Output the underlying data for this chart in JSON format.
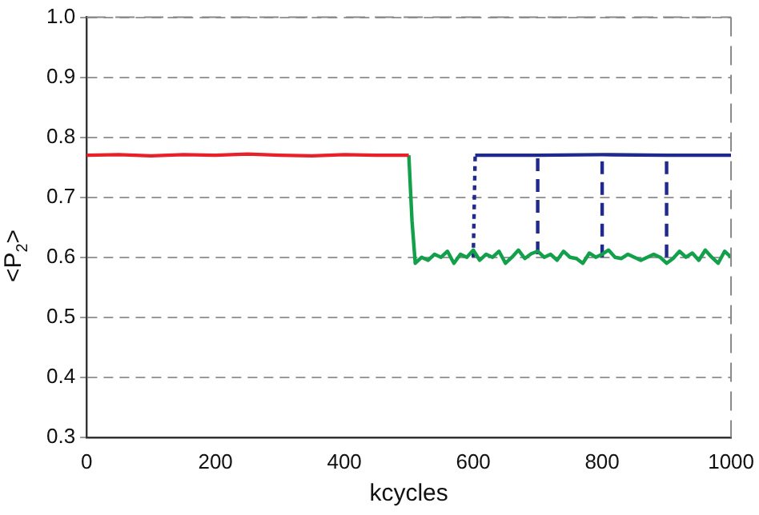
{
  "chart_data": {
    "type": "line",
    "xlabel": "kcycles",
    "ylabel": "<P$_{2}$>",
    "xlim": [
      0,
      1000
    ],
    "xticks": [
      0,
      200,
      400,
      600,
      800,
      1000
    ],
    "ylim": [
      0.3,
      1.0
    ],
    "yticks": [
      0.3,
      0.4,
      0.5,
      0.6,
      0.7,
      0.8,
      0.9,
      {
        "value": 1.0,
        "label": "1.0"
      }
    ],
    "grid": "y",
    "legend": false,
    "marker": "none",
    "series": [
      {
        "color": "#e8202a",
        "line_style": "solid",
        "x": [
          0,
          50,
          100,
          150,
          200,
          250,
          300,
          350,
          400,
          450,
          500
        ],
        "values": [
          0.77,
          0.771,
          0.769,
          0.771,
          0.77,
          0.772,
          0.77,
          0.769,
          0.771,
          0.77,
          0.77
        ]
      },
      {
        "color": "#12a04a",
        "line_style": "solid",
        "x": [
          500,
          505,
          510,
          520,
          530,
          540,
          550,
          560,
          570,
          580,
          590,
          600,
          610,
          620,
          630,
          640,
          650,
          660,
          670,
          680,
          690,
          700,
          710,
          720,
          730,
          740,
          750,
          760,
          770,
          780,
          790,
          800,
          810,
          820,
          830,
          840,
          850,
          860,
          870,
          880,
          890,
          900,
          910,
          920,
          930,
          940,
          950,
          960,
          970,
          980,
          990,
          1000
        ],
        "values": [
          0.77,
          0.66,
          0.59,
          0.6,
          0.595,
          0.605,
          0.6,
          0.61,
          0.59,
          0.605,
          0.6,
          0.612,
          0.595,
          0.605,
          0.6,
          0.61,
          0.59,
          0.6,
          0.612,
          0.598,
          0.606,
          0.61,
          0.6,
          0.605,
          0.595,
          0.61,
          0.6,
          0.598,
          0.59,
          0.607,
          0.6,
          0.605,
          0.612,
          0.6,
          0.598,
          0.605,
          0.6,
          0.595,
          0.6,
          0.605,
          0.6,
          0.59,
          0.598,
          0.61,
          0.6,
          0.607,
          0.595,
          0.612,
          0.6,
          0.59,
          0.61,
          0.6
        ]
      },
      {
        "color": "#1f2a8c",
        "line_style": "solid",
        "x": [
          603,
          700,
          800,
          900,
          1000
        ],
        "values": [
          0.77,
          0.77,
          0.771,
          0.77,
          0.77
        ]
      },
      {
        "color": "#1f2a8c",
        "line_style": "dotted",
        "x": [
          600,
          603
        ],
        "values": [
          0.6,
          0.77
        ]
      },
      {
        "color": "#1f2a8c",
        "line_style": "dashed",
        "x": [
          700,
          700
        ],
        "values": [
          0.605,
          0.77
        ]
      },
      {
        "color": "#1f2a8c",
        "line_style": "dashed",
        "x": [
          800,
          800
        ],
        "values": [
          0.6,
          0.77
        ]
      },
      {
        "color": "#1f2a8c",
        "line_style": "dashed",
        "x": [
          900,
          900
        ],
        "values": [
          0.6,
          0.77
        ]
      }
    ]
  }
}
